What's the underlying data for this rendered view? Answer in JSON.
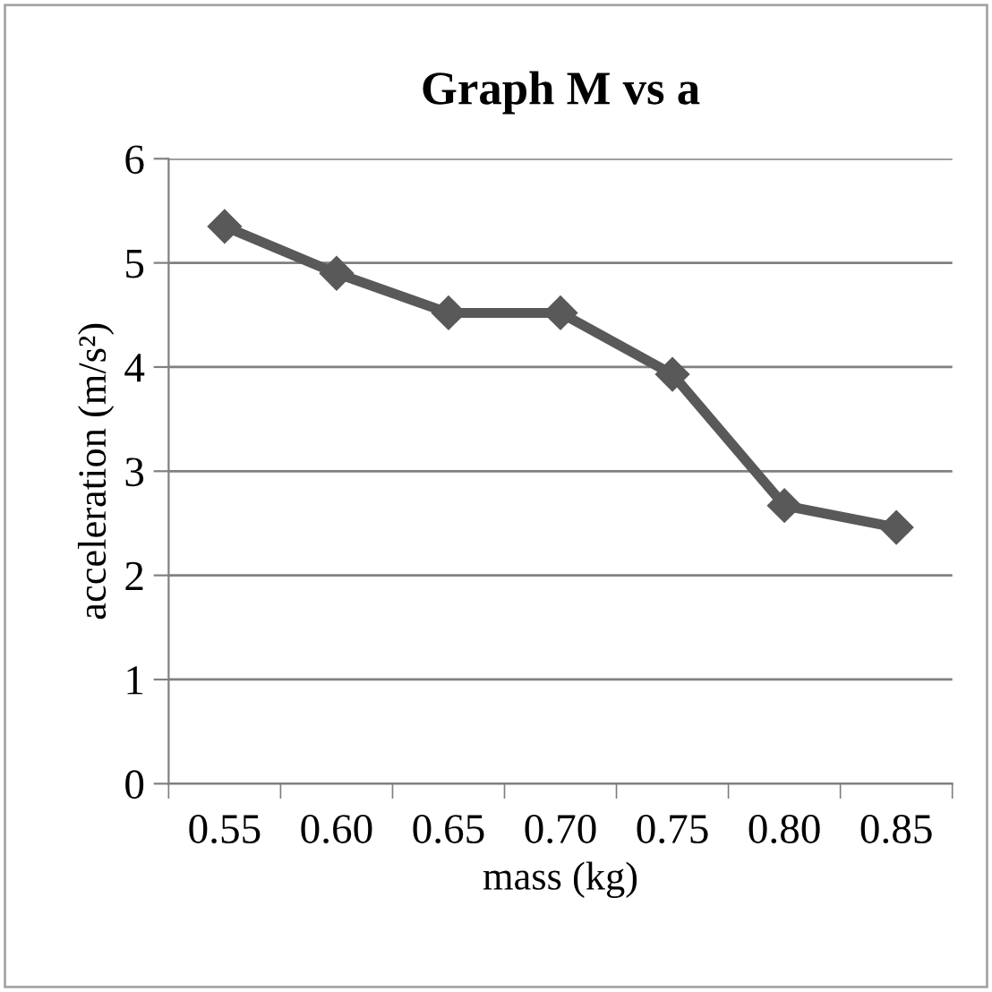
{
  "chart_data": {
    "type": "line",
    "title": "Graph M vs a",
    "xlabel": "mass (kg)",
    "ylabel": "acceleration (m/s²)",
    "categories": [
      "0.55",
      "0.60",
      "0.65",
      "0.70",
      "0.75",
      "0.80",
      "0.85"
    ],
    "series": [
      {
        "color": "#595959",
        "values": [
          5.35,
          4.9,
          4.52,
          4.52,
          3.93,
          2.67,
          2.46
        ]
      }
    ],
    "ylim": [
      0,
      6
    ],
    "yticks": [
      0,
      1,
      2,
      3,
      4,
      5,
      6
    ],
    "grid": "y",
    "legend": false,
    "marker": "diamond",
    "line_style": "solid"
  }
}
